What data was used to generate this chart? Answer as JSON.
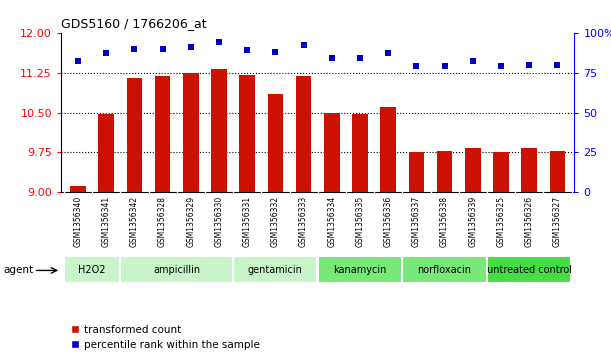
{
  "title": "GDS5160 / 1766206_at",
  "samples": [
    "GSM1356340",
    "GSM1356341",
    "GSM1356342",
    "GSM1356328",
    "GSM1356329",
    "GSM1356330",
    "GSM1356331",
    "GSM1356332",
    "GSM1356333",
    "GSM1356334",
    "GSM1356335",
    "GSM1356336",
    "GSM1356337",
    "GSM1356338",
    "GSM1356339",
    "GSM1356325",
    "GSM1356326",
    "GSM1356327"
  ],
  "bar_values": [
    9.12,
    10.48,
    11.15,
    11.19,
    11.24,
    11.32,
    11.2,
    10.85,
    11.19,
    10.5,
    10.48,
    10.6,
    9.75,
    9.78,
    9.83,
    9.75,
    9.83,
    9.77
  ],
  "dot_values": [
    82,
    87,
    90,
    90,
    91,
    94,
    89,
    88,
    92,
    84,
    84,
    87,
    79,
    79,
    82,
    79,
    80,
    80
  ],
  "groups": [
    {
      "label": "H2O2",
      "start": 0,
      "end": 2,
      "color": "#c8f5c8"
    },
    {
      "label": "ampicillin",
      "start": 2,
      "end": 6,
      "color": "#c8f5c8"
    },
    {
      "label": "gentamicin",
      "start": 6,
      "end": 9,
      "color": "#c8f5c8"
    },
    {
      "label": "kanamycin",
      "start": 9,
      "end": 12,
      "color": "#78e878"
    },
    {
      "label": "norfloxacin",
      "start": 12,
      "end": 15,
      "color": "#78e878"
    },
    {
      "label": "untreated control",
      "start": 15,
      "end": 18,
      "color": "#44dd44"
    }
  ],
  "bar_color": "#cc1100",
  "dot_color": "#0000cc",
  "ylim_left": [
    9.0,
    12.0
  ],
  "ylim_right": [
    0,
    100
  ],
  "yticks_left": [
    9.0,
    9.75,
    10.5,
    11.25,
    12.0
  ],
  "yticks_right": [
    0,
    25,
    50,
    75,
    100
  ],
  "hlines": [
    9.75,
    10.5,
    11.25
  ],
  "legend_bar_label": "transformed count",
  "legend_dot_label": "percentile rank within the sample",
  "agent_label": "agent",
  "tick_bg_color": "#d8d8d8",
  "background_color": "#ffffff"
}
